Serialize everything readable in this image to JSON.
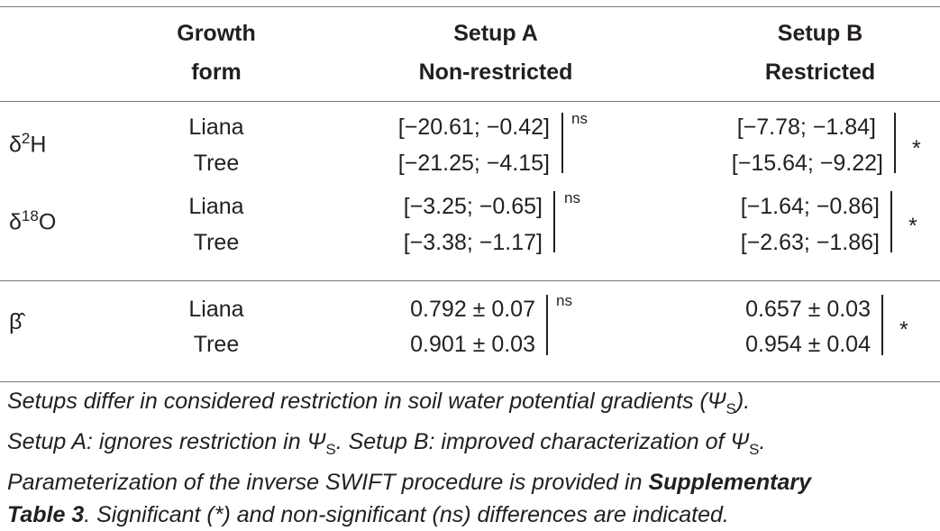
{
  "header": {
    "col1_line1": "Growth",
    "col1_line2": "form",
    "col2_line1": "Setup A",
    "col2_line2": "Non-restricted",
    "col3_line1": "Setup B",
    "col3_line2": "Restricted"
  },
  "rows": [
    {
      "param_symbol": "δ",
      "param_sup": "2",
      "param_rest": "H",
      "forms": [
        "Liana",
        "Tree"
      ],
      "setup_a": [
        "[−20.61; −0.42]",
        "[−21.25; −4.15]"
      ],
      "setup_a_sig": "ns",
      "setup_b": [
        "[−7.78; −1.84]",
        "[−15.64; −9.22]"
      ],
      "setup_b_sig": "*"
    },
    {
      "param_symbol": "δ",
      "param_sup": "18",
      "param_rest": "O",
      "forms": [
        "Liana",
        "Tree"
      ],
      "setup_a": [
        "[−3.25; −0.65]",
        "[−3.38; −1.17]"
      ],
      "setup_a_sig": "ns",
      "setup_b": [
        "[−1.64; −0.86]",
        "[−2.63; −1.86]"
      ],
      "setup_b_sig": "*"
    },
    {
      "param_symbol": "β̂",
      "forms": [
        "Liana",
        "Tree"
      ],
      "setup_a": [
        "0.792 ± 0.07",
        "0.901 ± 0.03"
      ],
      "setup_a_sig": "ns",
      "setup_b": [
        "0.657 ± 0.03",
        "0.954 ± 0.04"
      ],
      "setup_b_sig": "*"
    }
  ],
  "caption": {
    "line1": "Setups differ in considered restriction in soil water potential gradients (Ψ",
    "line1_sub": "S",
    "line1_end": ").",
    "line2": "Setup A: ignores restriction in Ψ",
    "line2_sub": "S",
    "line2_mid": ". Setup B: improved characterization of Ψ",
    "line2_sub2": "S",
    "line2_end": ".",
    "line3": "Parameterization of the inverse SWIFT procedure is provided in ",
    "line3_bold": "Supplementary",
    "line4_bold": "Table 3",
    "line4": ". Significant (*) and non-significant (ns) differences are indicated."
  }
}
